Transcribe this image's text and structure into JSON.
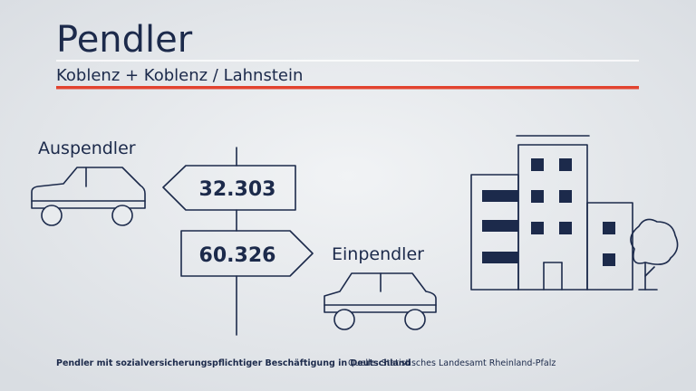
{
  "header": {
    "title": "Pendler",
    "subtitle": "Koblenz + Koblenz / Lahnstein"
  },
  "flows": [
    {
      "label": "Auspendler",
      "value": "32.303"
    },
    {
      "label": "Einpendler",
      "value": "60.326"
    }
  ],
  "footer": {
    "note": "Pendler mit sozialversicherungspflichtiger Beschäftigung in Deutschland",
    "source": "Quelle: Statistisches Landesamt Rheinland-Pfalz"
  }
}
